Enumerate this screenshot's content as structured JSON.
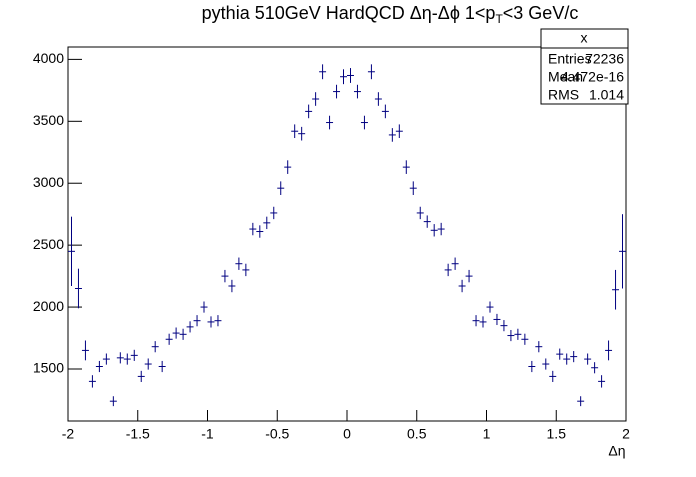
{
  "chart_data": {
    "type": "errorbar",
    "title": [
      "pythia 510GeV HardQCD Δη-Δϕ 1<p",
      "T",
      "<3 GeV/c"
    ],
    "x_label": "Δη",
    "x": [
      -1.975,
      -1.925,
      -1.875,
      -1.825,
      -1.775,
      -1.725,
      -1.675,
      -1.625,
      -1.575,
      -1.525,
      -1.475,
      -1.425,
      -1.375,
      -1.325,
      -1.275,
      -1.225,
      -1.175,
      -1.125,
      -1.075,
      -1.025,
      -0.975,
      -0.925,
      -0.875,
      -0.825,
      -0.775,
      -0.725,
      -0.675,
      -0.625,
      -0.575,
      -0.525,
      -0.475,
      -0.425,
      -0.375,
      -0.325,
      -0.275,
      -0.225,
      -0.175,
      -0.125,
      -0.075,
      -0.025,
      0.025,
      0.075,
      0.125,
      0.175,
      0.225,
      0.275,
      0.325,
      0.375,
      0.425,
      0.475,
      0.525,
      0.575,
      0.625,
      0.675,
      0.725,
      0.775,
      0.825,
      0.875,
      0.925,
      0.975,
      1.025,
      1.075,
      1.125,
      1.175,
      1.225,
      1.275,
      1.325,
      1.375,
      1.425,
      1.475,
      1.525,
      1.575,
      1.625,
      1.675,
      1.725,
      1.775,
      1.825,
      1.875,
      1.925,
      1.975
    ],
    "values": [
      2450,
      2150,
      1650,
      1400,
      1520,
      1580,
      1240,
      1590,
      1580,
      1610,
      1440,
      1540,
      1680,
      1520,
      1740,
      1790,
      1780,
      1840,
      1890,
      2000,
      1880,
      1890,
      2250,
      2170,
      2350,
      2300,
      2630,
      2610,
      2680,
      2760,
      2960,
      3130,
      3420,
      3400,
      3580,
      3680,
      3900,
      3490,
      3740,
      3860,
      3870,
      3740,
      3490,
      3900,
      3680,
      3580,
      3390,
      3420,
      3130,
      2960,
      2760,
      2690,
      2620,
      2630,
      2300,
      2350,
      2170,
      2250,
      1890,
      1880,
      2000,
      1900,
      1850,
      1770,
      1780,
      1740,
      1520,
      1680,
      1540,
      1440,
      1620,
      1580,
      1600,
      1240,
      1580,
      1510,
      1400,
      1650,
      2140,
      2450
    ],
    "errors": [
      280,
      160,
      80,
      50,
      45,
      45,
      40,
      45,
      45,
      45,
      45,
      45,
      45,
      45,
      45,
      45,
      45,
      45,
      45,
      45,
      45,
      45,
      50,
      50,
      50,
      50,
      50,
      50,
      50,
      50,
      55,
      55,
      55,
      55,
      55,
      55,
      60,
      55,
      55,
      60,
      60,
      55,
      55,
      60,
      55,
      55,
      55,
      55,
      55,
      55,
      50,
      50,
      50,
      50,
      50,
      50,
      50,
      50,
      45,
      45,
      45,
      45,
      45,
      45,
      45,
      45,
      45,
      45,
      45,
      45,
      45,
      45,
      45,
      40,
      45,
      45,
      50,
      80,
      160,
      300
    ],
    "color": "#000080",
    "xlim": [
      -2,
      2
    ],
    "ylim": [
      1080,
      4100
    ],
    "xticks": [
      -2,
      -1.5,
      -1,
      -0.5,
      0,
      0.5,
      1,
      1.5,
      2
    ],
    "yticks": [
      1500,
      2000,
      2500,
      3000,
      3500,
      4000
    ],
    "stats": {
      "name": "x",
      "rows": [
        [
          "Entries",
          72236
        ],
        [
          "Mean",
          4.472e-16
        ],
        [
          "RMS",
          1.014
        ]
      ]
    }
  }
}
